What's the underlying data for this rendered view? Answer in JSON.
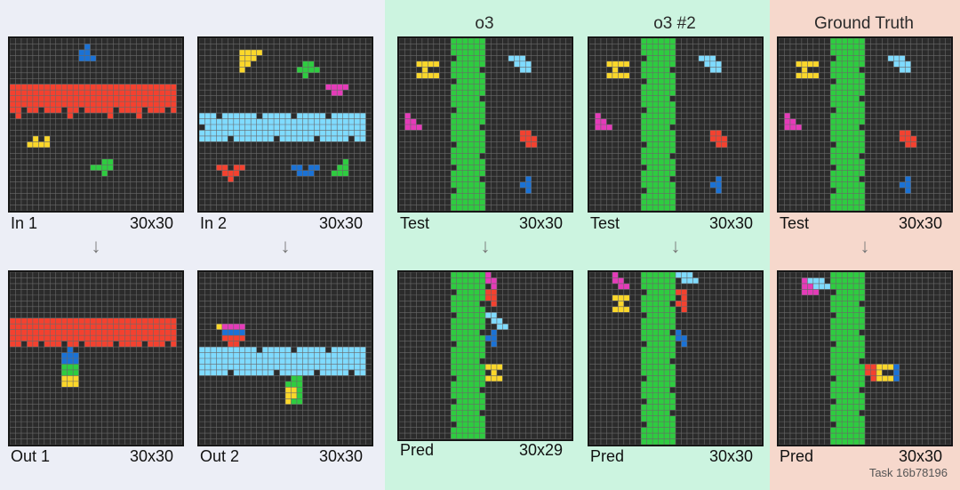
{
  "colors": {
    "left_bg": "#eceef6",
    "o3_bg": "#ccf4e0",
    "gt_bg": "#f6d8cc",
    "cell_bg": "#2b2b2b",
    "grid_line": "#6a6a6a",
    "red": "#f4412f",
    "blue": "#1a72d6",
    "yellow": "#fbd72a",
    "green": "#2ecc40",
    "cyan": "#7fdbff",
    "magenta": "#e53bb9"
  },
  "headers": {
    "o3": "o3",
    "o3_2": "o3 #2",
    "gt": "Ground Truth"
  },
  "examples": [
    {
      "in_label": "In 1",
      "in_size": "30x30",
      "out_label": "Out 1",
      "out_size": "30x30"
    },
    {
      "in_label": "In 2",
      "in_size": "30x30",
      "out_label": "Out 2",
      "out_size": "30x30"
    }
  ],
  "tests": [
    {
      "test_label": "Test",
      "test_size": "30x30",
      "pred_label": "Pred",
      "pred_size": "30x29"
    },
    {
      "test_label": "Test",
      "test_size": "30x30",
      "pred_label": "Pred",
      "pred_size": "30x30"
    },
    {
      "test_label": "Test",
      "test_size": "30x30",
      "pred_label": "Pred",
      "pred_size": "30x30"
    }
  ],
  "arrow_glyph": "↓",
  "task_id": "Task 16b78196"
}
